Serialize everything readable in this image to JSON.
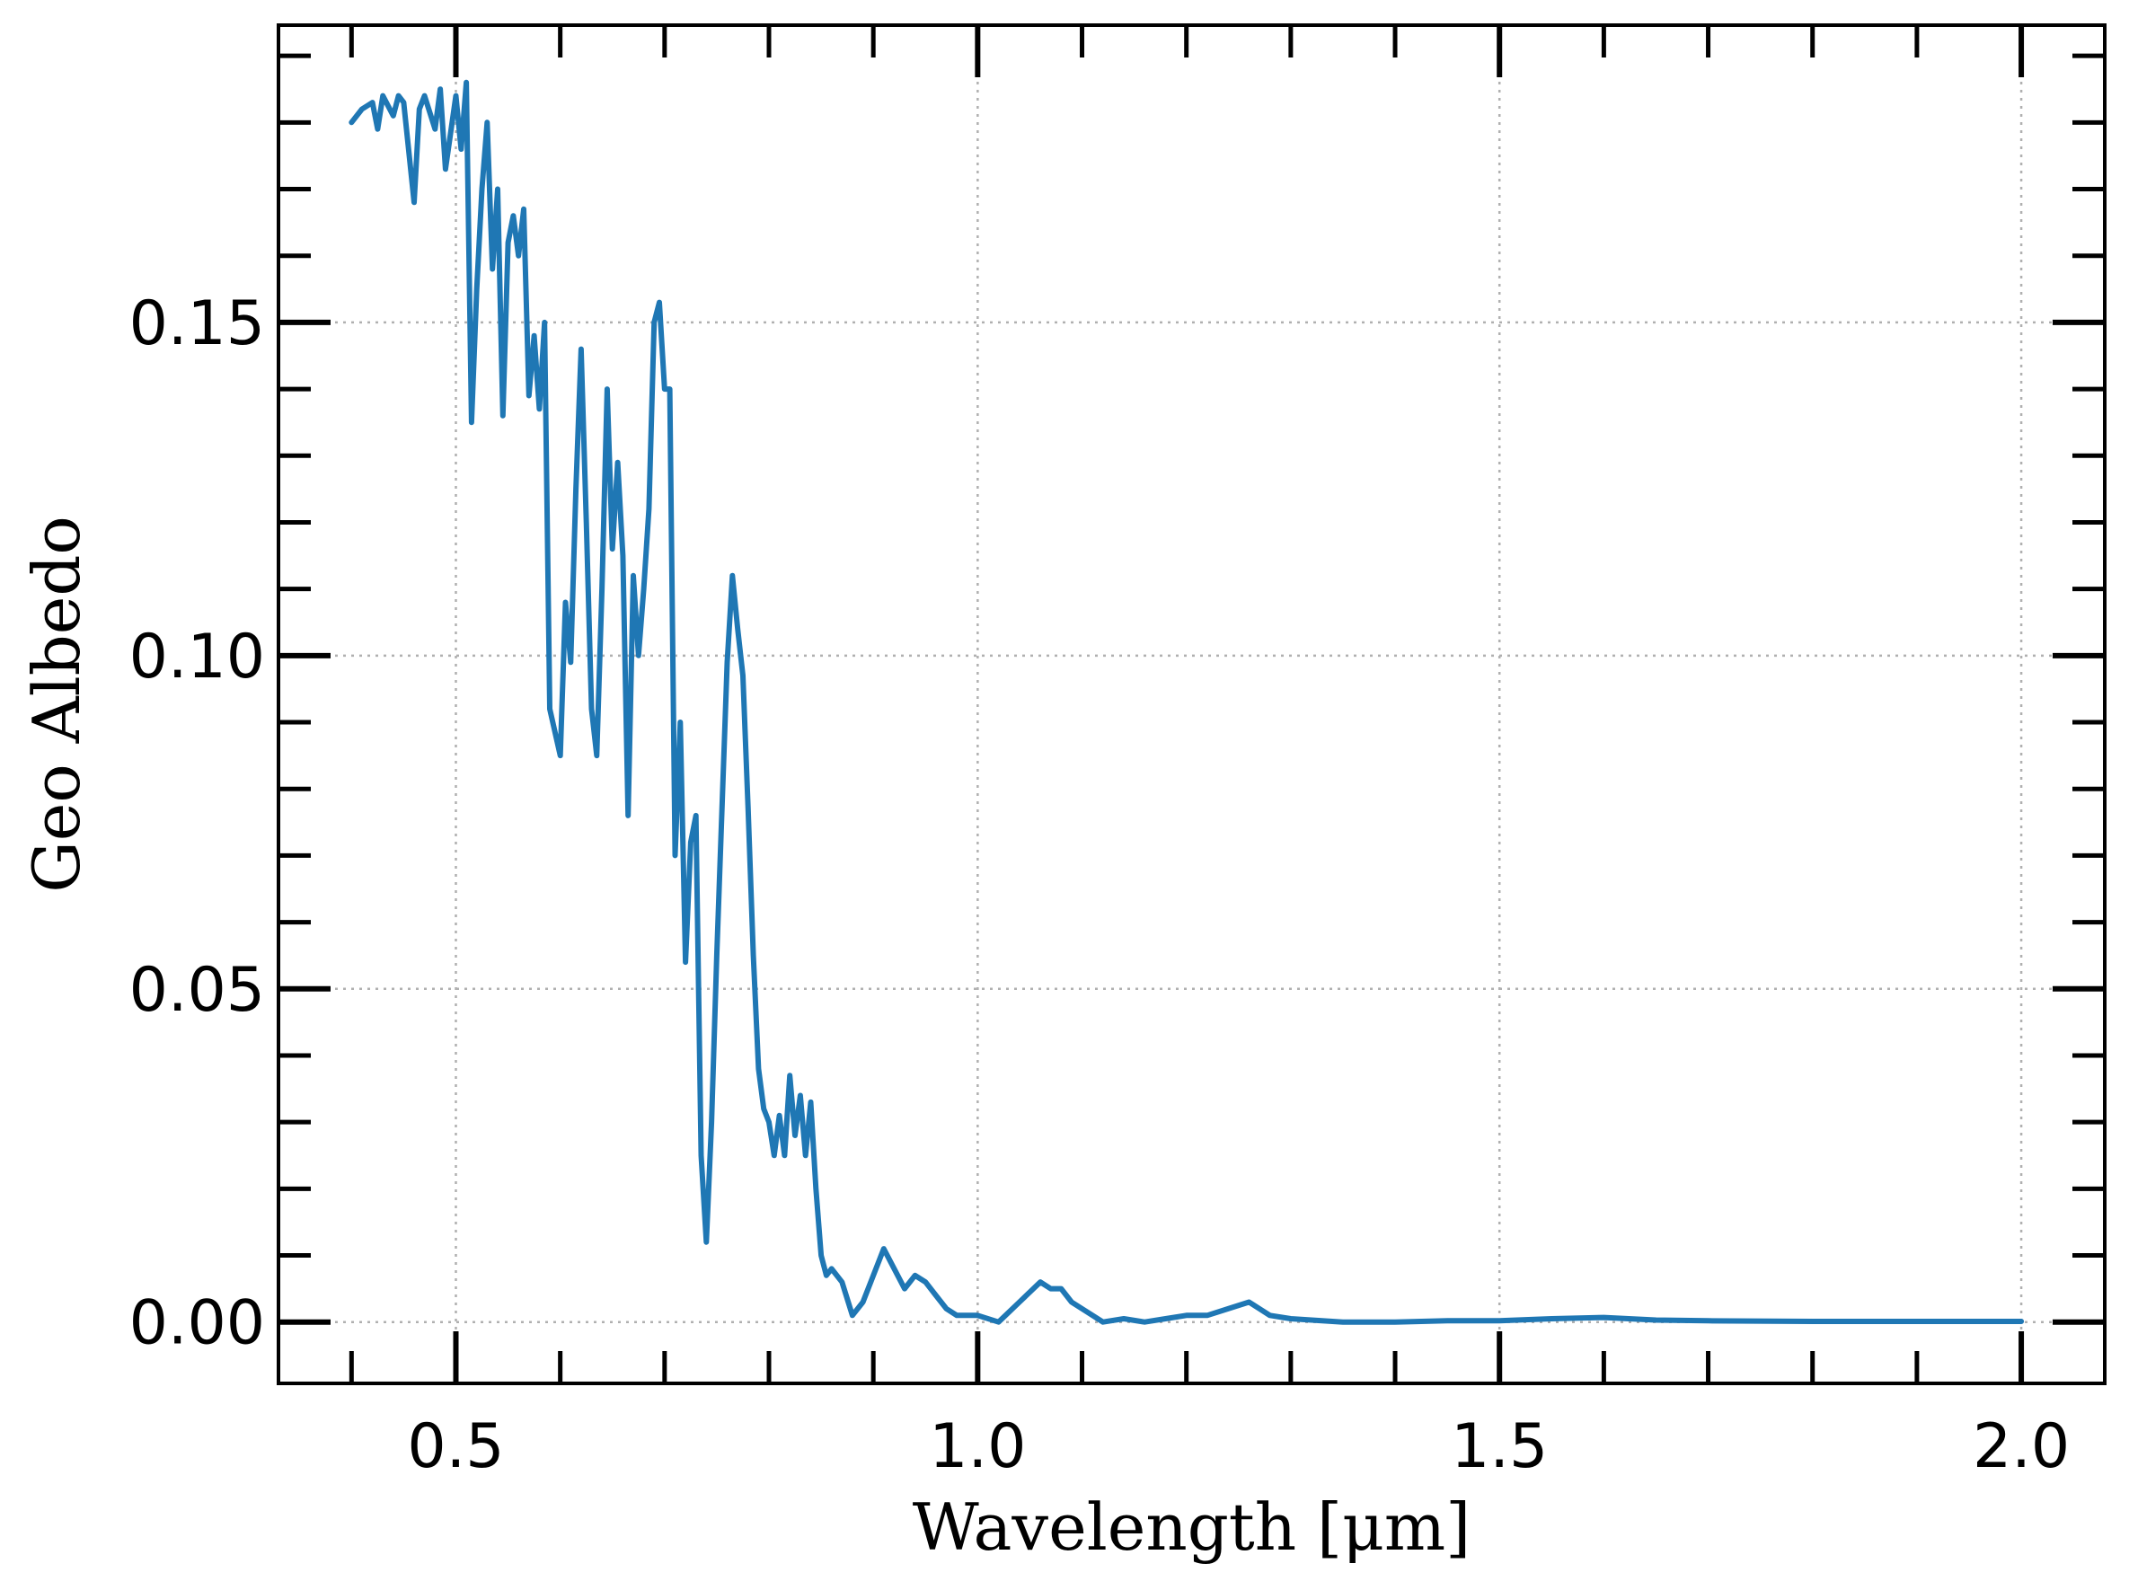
{
  "chart_data": {
    "type": "line",
    "title": "",
    "xlabel": "Wavelength [μm]",
    "ylabel": "Geo Albedo",
    "xlim": [
      0.33,
      2.08
    ],
    "ylim": [
      -0.0092,
      0.1946
    ],
    "x_ticks": [
      0.5,
      1.0,
      1.5,
      2.0
    ],
    "x_tick_labels": [
      "0.5",
      "1.0",
      "1.5",
      "2.0"
    ],
    "y_ticks": [
      0.0,
      0.05,
      0.1,
      0.15
    ],
    "y_tick_labels": [
      "0.00",
      "0.05",
      "0.10",
      "0.15"
    ],
    "x_minor_step": 0.1,
    "y_minor_step": 0.01,
    "grid": "major, dotted",
    "legend": "none",
    "series": [
      {
        "color": "#1f77b4",
        "x": [
          0.4,
          0.41,
          0.42,
          0.425,
          0.43,
          0.44,
          0.445,
          0.45,
          0.46,
          0.465,
          0.47,
          0.48,
          0.485,
          0.49,
          0.5,
          0.505,
          0.51,
          0.515,
          0.52,
          0.525,
          0.53,
          0.535,
          0.54,
          0.545,
          0.55,
          0.555,
          0.56,
          0.565,
          0.57,
          0.575,
          0.58,
          0.585,
          0.59,
          0.6,
          0.605,
          0.61,
          0.615,
          0.62,
          0.625,
          0.63,
          0.635,
          0.64,
          0.645,
          0.65,
          0.655,
          0.66,
          0.665,
          0.67,
          0.675,
          0.68,
          0.685,
          0.69,
          0.695,
          0.7,
          0.705,
          0.71,
          0.715,
          0.72,
          0.725,
          0.73,
          0.735,
          0.74,
          0.745,
          0.75,
          0.755,
          0.76,
          0.765,
          0.77,
          0.775,
          0.78,
          0.785,
          0.79,
          0.795,
          0.8,
          0.805,
          0.81,
          0.815,
          0.82,
          0.825,
          0.83,
          0.835,
          0.84,
          0.845,
          0.85,
          0.855,
          0.86,
          0.87,
          0.88,
          0.89,
          0.9,
          0.91,
          0.92,
          0.93,
          0.94,
          0.95,
          0.96,
          0.97,
          0.98,
          0.99,
          1.0,
          1.02,
          1.04,
          1.06,
          1.07,
          1.08,
          1.09,
          1.1,
          1.12,
          1.14,
          1.16,
          1.18,
          1.2,
          1.22,
          1.24,
          1.26,
          1.27,
          1.28,
          1.3,
          1.35,
          1.4,
          1.45,
          1.5,
          1.55,
          1.6,
          1.65,
          1.7,
          1.8,
          1.9,
          2.0
        ],
        "y": [
          0.18,
          0.182,
          0.183,
          0.179,
          0.184,
          0.181,
          0.184,
          0.183,
          0.168,
          0.182,
          0.184,
          0.179,
          0.185,
          0.173,
          0.184,
          0.176,
          0.186,
          0.135,
          0.155,
          0.17,
          0.18,
          0.158,
          0.17,
          0.136,
          0.162,
          0.166,
          0.16,
          0.167,
          0.139,
          0.148,
          0.137,
          0.15,
          0.092,
          0.085,
          0.108,
          0.099,
          0.125,
          0.146,
          0.12,
          0.092,
          0.085,
          0.11,
          0.14,
          0.116,
          0.129,
          0.115,
          0.076,
          0.112,
          0.1,
          0.11,
          0.122,
          0.15,
          0.153,
          0.14,
          0.14,
          0.07,
          0.09,
          0.054,
          0.072,
          0.076,
          0.025,
          0.012,
          0.03,
          0.055,
          0.077,
          0.099,
          0.112,
          0.104,
          0.097,
          0.077,
          0.055,
          0.038,
          0.032,
          0.03,
          0.025,
          0.031,
          0.025,
          0.037,
          0.028,
          0.034,
          0.025,
          0.033,
          0.02,
          0.01,
          0.007,
          0.008,
          0.006,
          0.001,
          0.003,
          0.007,
          0.011,
          0.008,
          0.005,
          0.007,
          0.006,
          0.004,
          0.002,
          0.001,
          0.001,
          0.001,
          0.0,
          0.003,
          0.006,
          0.005,
          0.005,
          0.003,
          0.002,
          0.0,
          0.0005,
          0.0,
          0.0005,
          0.001,
          0.001,
          0.002,
          0.003,
          0.002,
          0.001,
          0.0005,
          0.0,
          0.0,
          0.0002,
          0.0002,
          0.0005,
          0.0007,
          0.0003,
          0.0002,
          0.0001,
          0.0001,
          0.0001
        ]
      }
    ]
  }
}
